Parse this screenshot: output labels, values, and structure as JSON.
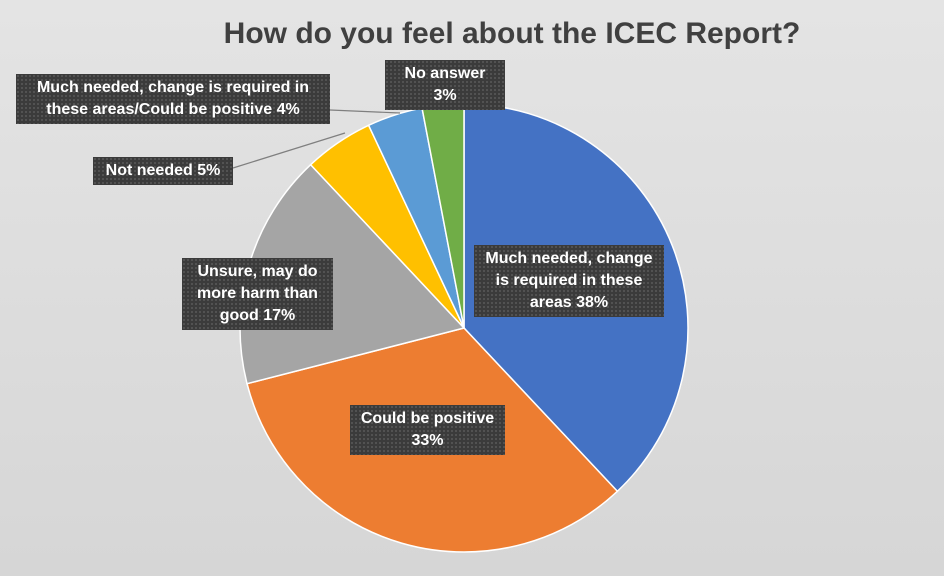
{
  "chart_data": {
    "type": "pie",
    "title": "How do you feel about the ICEC Report?",
    "categories": [
      "Much needed, change is required in these areas",
      "Could be positive",
      "Unsure, may do more harm than good",
      "Not needed",
      "Much needed, change is required in these areas/Could be positive",
      "No answer"
    ],
    "values": [
      38,
      33,
      17,
      5,
      4,
      3
    ],
    "value_labels": [
      "38%",
      "33%",
      "17%",
      "5%",
      "4%",
      "3%"
    ],
    "colors": [
      "#4472c4",
      "#ed7d31",
      "#a5a5a5",
      "#ffc000",
      "#5b9bd5",
      "#70ad47"
    ]
  }
}
